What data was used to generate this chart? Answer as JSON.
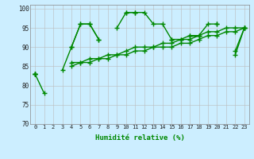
{
  "x": [
    0,
    1,
    2,
    3,
    4,
    5,
    6,
    7,
    8,
    9,
    10,
    11,
    12,
    13,
    14,
    15,
    16,
    17,
    18,
    19,
    20,
    21,
    22,
    23
  ],
  "line1": [
    83,
    78,
    null,
    84,
    90,
    96,
    96,
    92,
    null,
    null,
    99,
    99,
    99,
    96,
    96,
    92,
    92,
    93,
    93,
    96,
    96,
    null,
    89,
    95
  ],
  "line2": [
    83,
    null,
    null,
    null,
    90,
    96,
    96,
    92,
    null,
    95,
    99,
    99,
    null,
    null,
    null,
    92,
    null,
    93,
    93,
    null,
    96,
    null,
    88,
    95
  ],
  "line3": [
    83,
    null,
    null,
    null,
    86,
    86,
    87,
    87,
    88,
    88,
    89,
    90,
    90,
    90,
    91,
    91,
    92,
    92,
    93,
    94,
    94,
    95,
    95,
    95
  ],
  "line4": [
    83,
    null,
    null,
    null,
    85,
    86,
    86,
    87,
    87,
    88,
    88,
    89,
    89,
    90,
    90,
    90,
    91,
    91,
    92,
    93,
    93,
    94,
    94,
    95
  ],
  "ylim": [
    70,
    101
  ],
  "yticks": [
    70,
    75,
    80,
    85,
    90,
    95,
    100
  ],
  "xlim": [
    -0.5,
    23.5
  ],
  "xlabel": "Humidité relative (%)",
  "line_color": "#008800",
  "bg_color": "#cceeff",
  "grid_color": "#bbbbbb",
  "marker": "+",
  "markersize": 4,
  "linewidth": 1.0
}
